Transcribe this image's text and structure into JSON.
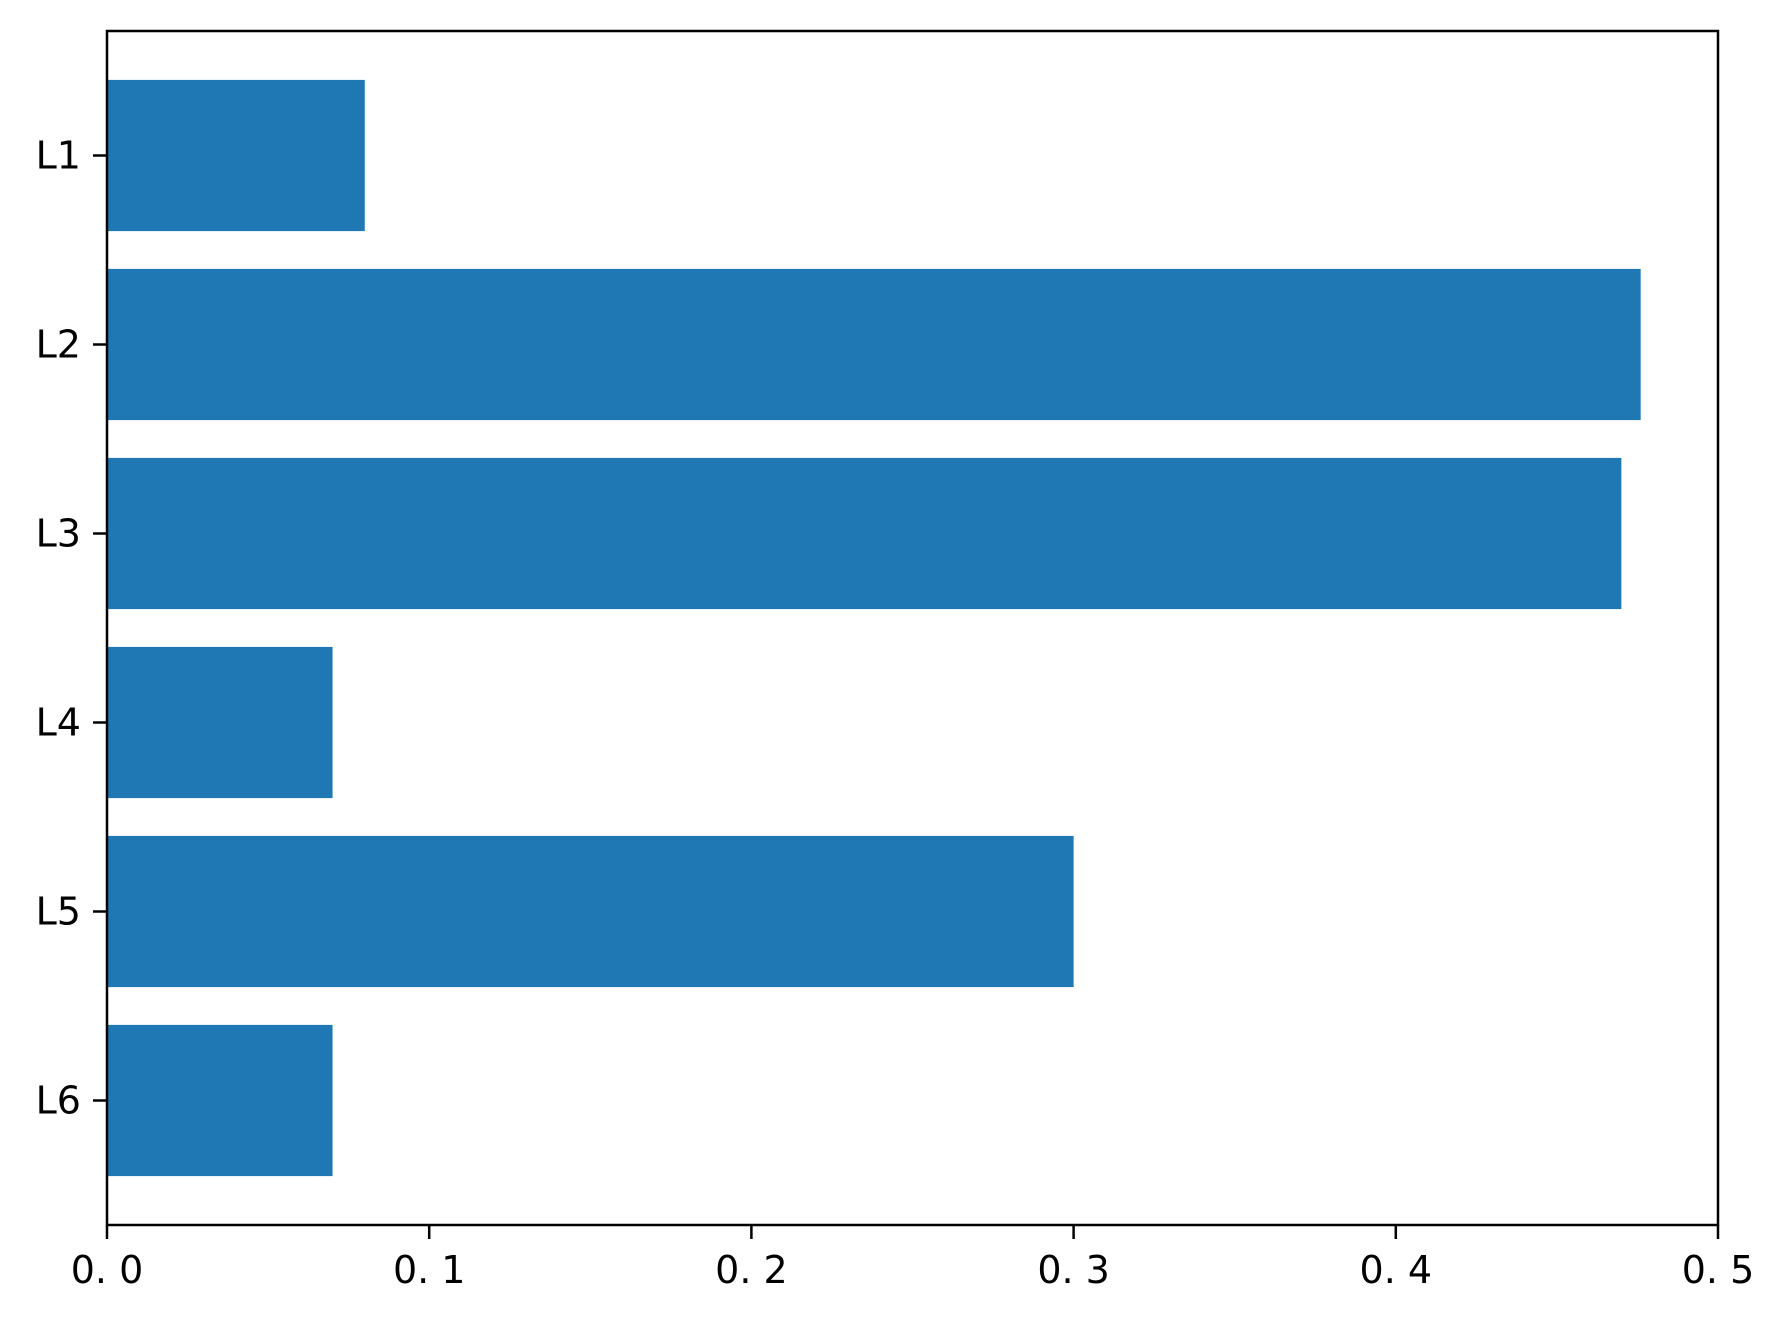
{
  "chart_data": {
    "type": "bar",
    "orientation": "horizontal",
    "categories": [
      "L1",
      "L2",
      "L3",
      "L4",
      "L5",
      "L6"
    ],
    "values": [
      0.08,
      0.476,
      0.47,
      0.07,
      0.3,
      0.07
    ],
    "title": "",
    "xlabel": "",
    "ylabel": "",
    "xlim": [
      0.0,
      0.5
    ],
    "xticks": [
      0.0,
      0.1,
      0.2,
      0.3,
      0.4,
      0.5
    ],
    "xtick_labels": [
      "0. 0",
      "0. 1",
      "0. 2",
      "0. 3",
      "0. 4",
      "0. 5"
    ],
    "grid": false,
    "legend": "none",
    "bar_color": "#1f77b4"
  }
}
